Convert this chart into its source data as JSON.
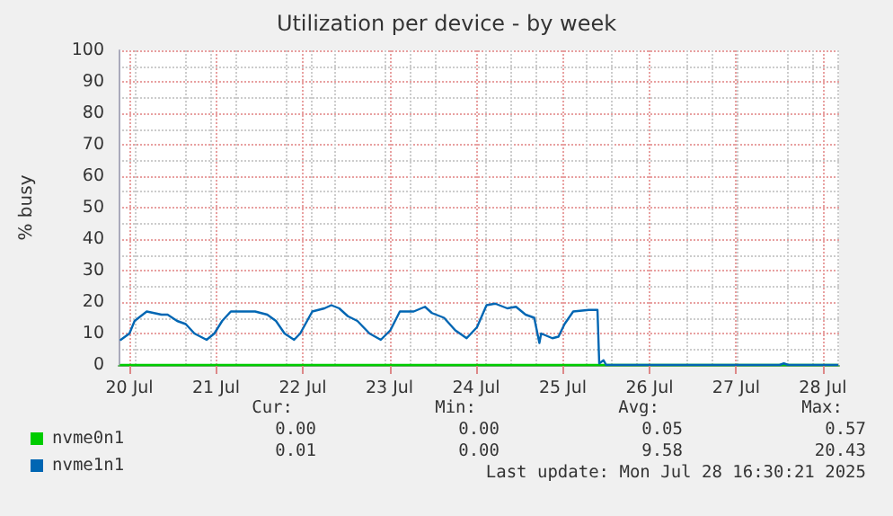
{
  "chart_data": {
    "type": "line",
    "title": "Utilization per device - by week",
    "ylabel": "% busy",
    "xlim": [
      "2025-07-19T21:00",
      "2025-07-28T04:30"
    ],
    "xticks": [
      {
        "value": "2025-07-20",
        "label": "20 Jul"
      },
      {
        "value": "2025-07-21",
        "label": "21 Jul"
      },
      {
        "value": "2025-07-22",
        "label": "22 Jul"
      },
      {
        "value": "2025-07-23",
        "label": "23 Jul"
      },
      {
        "value": "2025-07-24",
        "label": "24 Jul"
      },
      {
        "value": "2025-07-25",
        "label": "25 Jul"
      },
      {
        "value": "2025-07-26",
        "label": "26 Jul"
      },
      {
        "value": "2025-07-27",
        "label": "27 Jul"
      },
      {
        "value": "2025-07-28",
        "label": "28 Jul"
      }
    ],
    "ylim": [
      0,
      100
    ],
    "yticks": [
      0,
      10,
      20,
      30,
      40,
      50,
      60,
      70,
      80,
      90,
      100
    ],
    "grid": true,
    "legend": "bottom left",
    "marker": "none",
    "line_style": "solid",
    "series": [
      {
        "name": "nvme0n1",
        "color": "#00cc00",
        "x": [
          "2025-07-19T21:36",
          "2025-07-28T04:00"
        ],
        "values": [
          0,
          0
        ]
      },
      {
        "name": "nvme1n1",
        "color": "#0066b3",
        "x": [
          "2025-07-19T21:36",
          "2025-07-20T00:00",
          "2025-07-20T01:26",
          "2025-07-20T04:48",
          "2025-07-20T08:53",
          "2025-07-20T10:34",
          "2025-07-20T13:12",
          "2025-07-20T15:36",
          "2025-07-20T18:00",
          "2025-07-20T21:22",
          "2025-07-20T23:31",
          "2025-07-21T01:41",
          "2025-07-21T04:05",
          "2025-07-21T08:10",
          "2025-07-21T10:48",
          "2025-07-21T14:10",
          "2025-07-21T16:34",
          "2025-07-21T18:58",
          "2025-07-21T21:36",
          "2025-07-21T23:17",
          "2025-07-22T02:38",
          "2025-07-22T06:00",
          "2025-07-22T07:55",
          "2025-07-22T10:05",
          "2025-07-22T12:29",
          "2025-07-22T15:07",
          "2025-07-22T18:29",
          "2025-07-22T21:36",
          "2025-07-23T00:14",
          "2025-07-23T02:53",
          "2025-07-23T06:43",
          "2025-07-23T09:50",
          "2025-07-23T11:46",
          "2025-07-23T15:07",
          "2025-07-23T18:14",
          "2025-07-23T21:22",
          "2025-07-24T00:14",
          "2025-07-24T02:53",
          "2025-07-24T05:17",
          "2025-07-24T08:38",
          "2025-07-24T11:02",
          "2025-07-24T13:41",
          "2025-07-24T16:05",
          "2025-07-24T16:48",
          "2025-07-24T17:31",
          "2025-07-24T18:00",
          "2025-07-24T21:07",
          "2025-07-24T22:48",
          "2025-07-25T00:29",
          "2025-07-25T02:53",
          "2025-07-25T07:12",
          "2025-07-25T09:36",
          "2025-07-25T10:05",
          "2025-07-25T11:17",
          "2025-07-25T12:00",
          "2025-07-27T12:00",
          "2025-07-27T13:12",
          "2025-07-27T14:24",
          "2025-07-28T04:00"
        ],
        "values": [
          8,
          10,
          14,
          17,
          16,
          16,
          14,
          13,
          10,
          8,
          10,
          14,
          17,
          17,
          17,
          16,
          14,
          10,
          8,
          10,
          17,
          18,
          19,
          18,
          15.5,
          14,
          10,
          8,
          11,
          17,
          17,
          18.5,
          16.5,
          15,
          11,
          8.5,
          12,
          19,
          19.5,
          18,
          18.5,
          16,
          15,
          11,
          7,
          10,
          8.5,
          9,
          13,
          17,
          17.5,
          17.5,
          0.5,
          1.5,
          0,
          0,
          0.5,
          0,
          0
        ]
      }
    ],
    "annotations": [
      "Cur:",
      "Min:",
      "Avg:",
      "Max:",
      "0.00",
      "0.00",
      "0.05",
      "0.57",
      "0.01",
      "0.00",
      "9.58",
      "20.43",
      "Last update: Mon Jul 28 16:30:21 2025"
    ]
  }
}
